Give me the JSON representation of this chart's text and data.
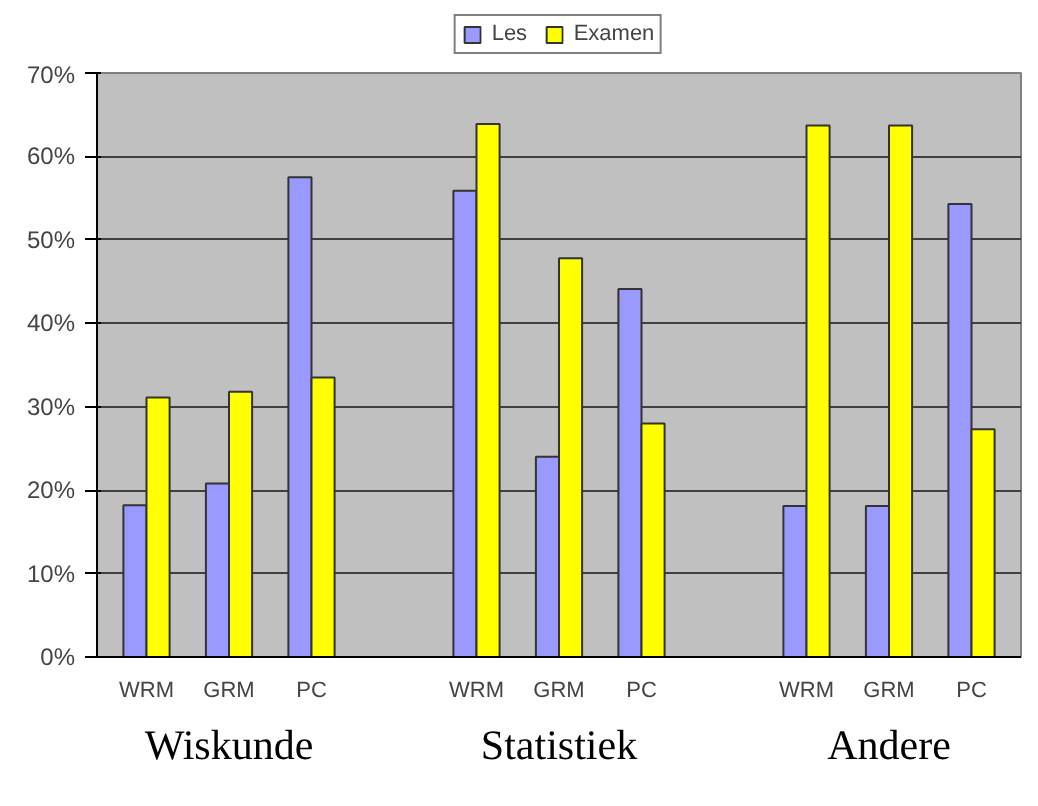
{
  "chart_data": {
    "type": "bar",
    "categories": [
      "WRM",
      "GRM",
      "PC",
      null,
      "WRM",
      "GRM",
      "PC",
      null,
      "WRM",
      "GRM",
      "PC"
    ],
    "series": [
      {
        "name": "Les",
        "color": "#9999ff",
        "values": [
          18.2,
          20.8,
          57.5,
          null,
          55.9,
          24.0,
          44.1,
          null,
          18.1,
          18.1,
          54.3
        ]
      },
      {
        "name": "Examen",
        "color": "#ffff00",
        "values": [
          31.1,
          31.8,
          33.5,
          null,
          63.9,
          47.8,
          28.0,
          null,
          63.7,
          63.7,
          27.3
        ]
      }
    ],
    "ylim": [
      0,
      70
    ],
    "yticks": [
      {
        "value": 0,
        "label": "0%"
      },
      {
        "value": 10,
        "label": "10%"
      },
      {
        "value": 20,
        "label": "20%"
      },
      {
        "value": 30,
        "label": "30%"
      },
      {
        "value": 40,
        "label": "40%"
      },
      {
        "value": 50,
        "label": "50%"
      },
      {
        "value": 60,
        "label": "60%"
      },
      {
        "value": 70,
        "label": "70%"
      }
    ],
    "annotations": [
      "Wiskunde",
      "Statistiek",
      "Andere"
    ],
    "grid": "y",
    "legend": "top"
  }
}
